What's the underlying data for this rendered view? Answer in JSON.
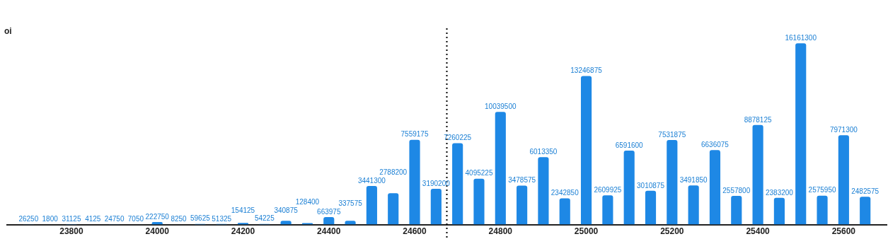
{
  "chart_data": {
    "type": "bar",
    "annotations": [
      "oi"
    ],
    "x": [
      23700,
      23750,
      23800,
      23850,
      23900,
      23950,
      24000,
      24050,
      24100,
      24150,
      24200,
      24250,
      24300,
      24350,
      24400,
      24450,
      24500,
      24550,
      24600,
      24650,
      24700,
      24750,
      24800,
      24850,
      24900,
      24950,
      25000,
      25050,
      25100,
      25150,
      25200,
      25250,
      25300,
      25350,
      25400,
      25450,
      25500,
      25550,
      25600,
      25650
    ],
    "values": [
      26250,
      1800,
      31125,
      4125,
      24750,
      7050,
      222750,
      8250,
      59625,
      51325,
      154125,
      54225,
      340875,
      128400,
      663975,
      337575,
      3441300,
      2788200,
      7559175,
      3190200,
      7260225,
      4095225,
      10039500,
      3478575,
      6013350,
      2342850,
      13246875,
      2609925,
      6591600,
      3010875,
      7531875,
      3491850,
      6636075,
      2557800,
      8878125,
      2383200,
      16161300,
      2575950,
      7971300,
      2482575
    ],
    "color": "#1e88e5",
    "xlim": [
      23650,
      25700
    ],
    "xticks": [
      23800,
      24000,
      24200,
      24400,
      24600,
      24800,
      25000,
      25200,
      25400,
      25600
    ],
    "ylim": [
      0,
      17500000
    ],
    "tick_labels": "x",
    "legend": false,
    "data_labels": true,
    "ref_lines": [
      {
        "axis": "x",
        "value": 24675,
        "label": null,
        "color": "#000000",
        "line_style": "dotted"
      }
    ]
  }
}
